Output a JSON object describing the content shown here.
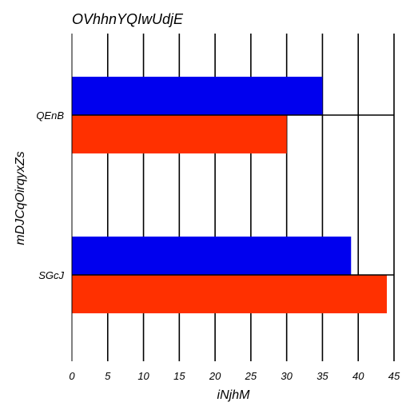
{
  "chart_data": {
    "type": "bar",
    "orientation": "horizontal",
    "title": "OVhhnYQIwUdjE",
    "xlabel": "iNjhM",
    "ylabel": "mDJCqOirqyxZs",
    "categories": [
      "QEnB",
      "SGcJ"
    ],
    "series": [
      {
        "values": [
          35,
          39
        ],
        "color": "#0000ee"
      },
      {
        "values": [
          30,
          44
        ],
        "color": "#ff3000"
      }
    ],
    "xlim": [
      0,
      45
    ],
    "xticks": [
      0,
      5,
      10,
      15,
      20,
      25,
      30,
      35,
      40,
      45
    ],
    "grid": "vertical",
    "legend": "none"
  }
}
